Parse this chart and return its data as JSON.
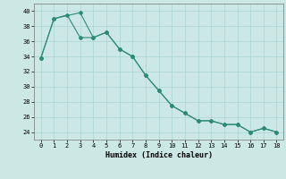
{
  "xlabel": "Humidex (Indice chaleur)",
  "line_color": "#2e8b73",
  "bg_color": "#cce8e4",
  "grid_color": "#aad4d0",
  "ylim": [
    23,
    41
  ],
  "xlim": [
    -0.5,
    18.5
  ],
  "yticks": [
    24,
    26,
    28,
    30,
    32,
    34,
    36,
    38,
    40
  ],
  "xticks": [
    0,
    1,
    2,
    3,
    4,
    5,
    6,
    7,
    8,
    9,
    10,
    11,
    12,
    13,
    14,
    15,
    16,
    17,
    18
  ],
  "line_a_x": [
    0,
    1,
    2,
    3,
    4,
    5,
    6,
    7,
    8,
    9,
    10,
    11,
    12,
    13,
    14,
    15,
    16,
    17,
    18
  ],
  "line_a_y": [
    33.8,
    39.0,
    39.5,
    36.5,
    36.5,
    37.2,
    35.0,
    34.0,
    31.5,
    29.5,
    27.5,
    26.5,
    25.5,
    25.5,
    25.0,
    25.0,
    24.0,
    24.5,
    24.0
  ],
  "line_b_x": [
    0,
    1,
    3,
    4,
    5,
    6,
    7,
    8,
    9,
    10,
    11,
    12,
    13,
    14,
    15,
    16,
    17,
    18
  ],
  "line_b_y": [
    33.8,
    39.0,
    39.8,
    36.5,
    37.2,
    35.0,
    34.0,
    31.5,
    29.5,
    27.5,
    26.5,
    25.5,
    25.5,
    25.0,
    25.0,
    24.0,
    24.5,
    24.0
  ]
}
